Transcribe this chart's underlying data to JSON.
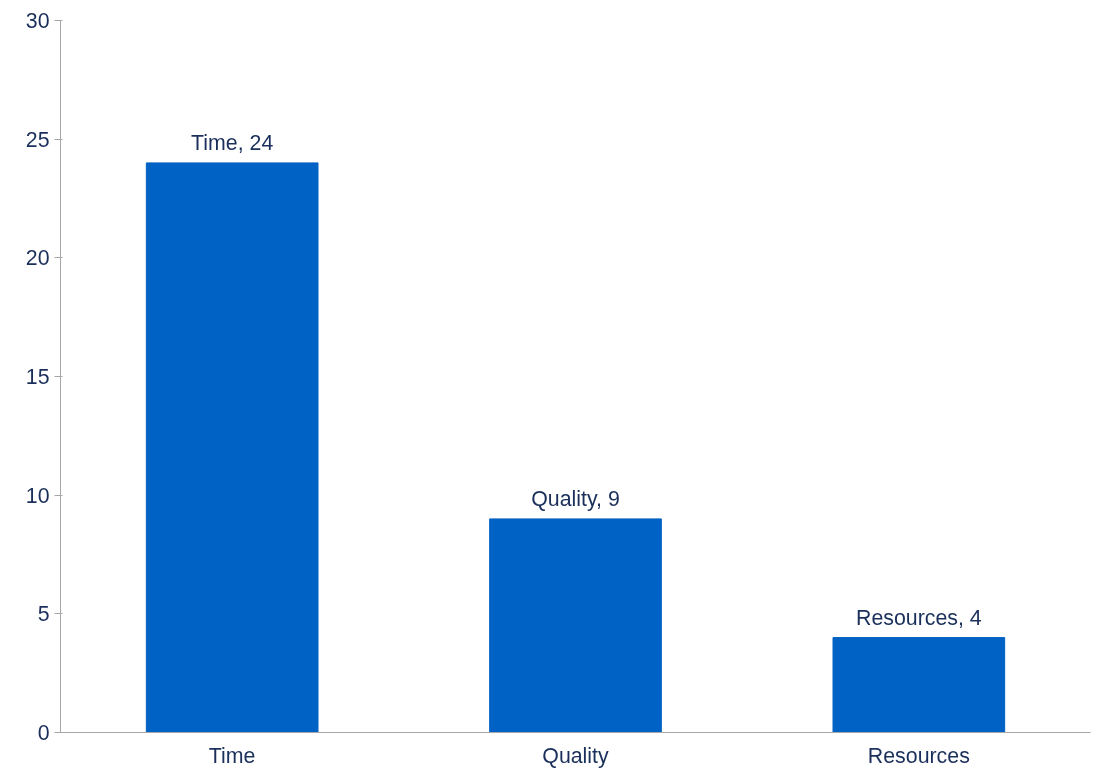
{
  "chart_data": {
    "type": "bar",
    "categories": [
      "Time",
      "Quality",
      "Resources"
    ],
    "values": [
      24,
      9,
      4
    ],
    "color": "#0062c4",
    "value_labels": [
      "Time, 24",
      "Quality, 9",
      "Resources, 4"
    ],
    "ylim": [
      0,
      30
    ],
    "yticks": [
      0,
      5,
      10,
      15,
      20,
      25,
      30
    ],
    "grid": false
  }
}
